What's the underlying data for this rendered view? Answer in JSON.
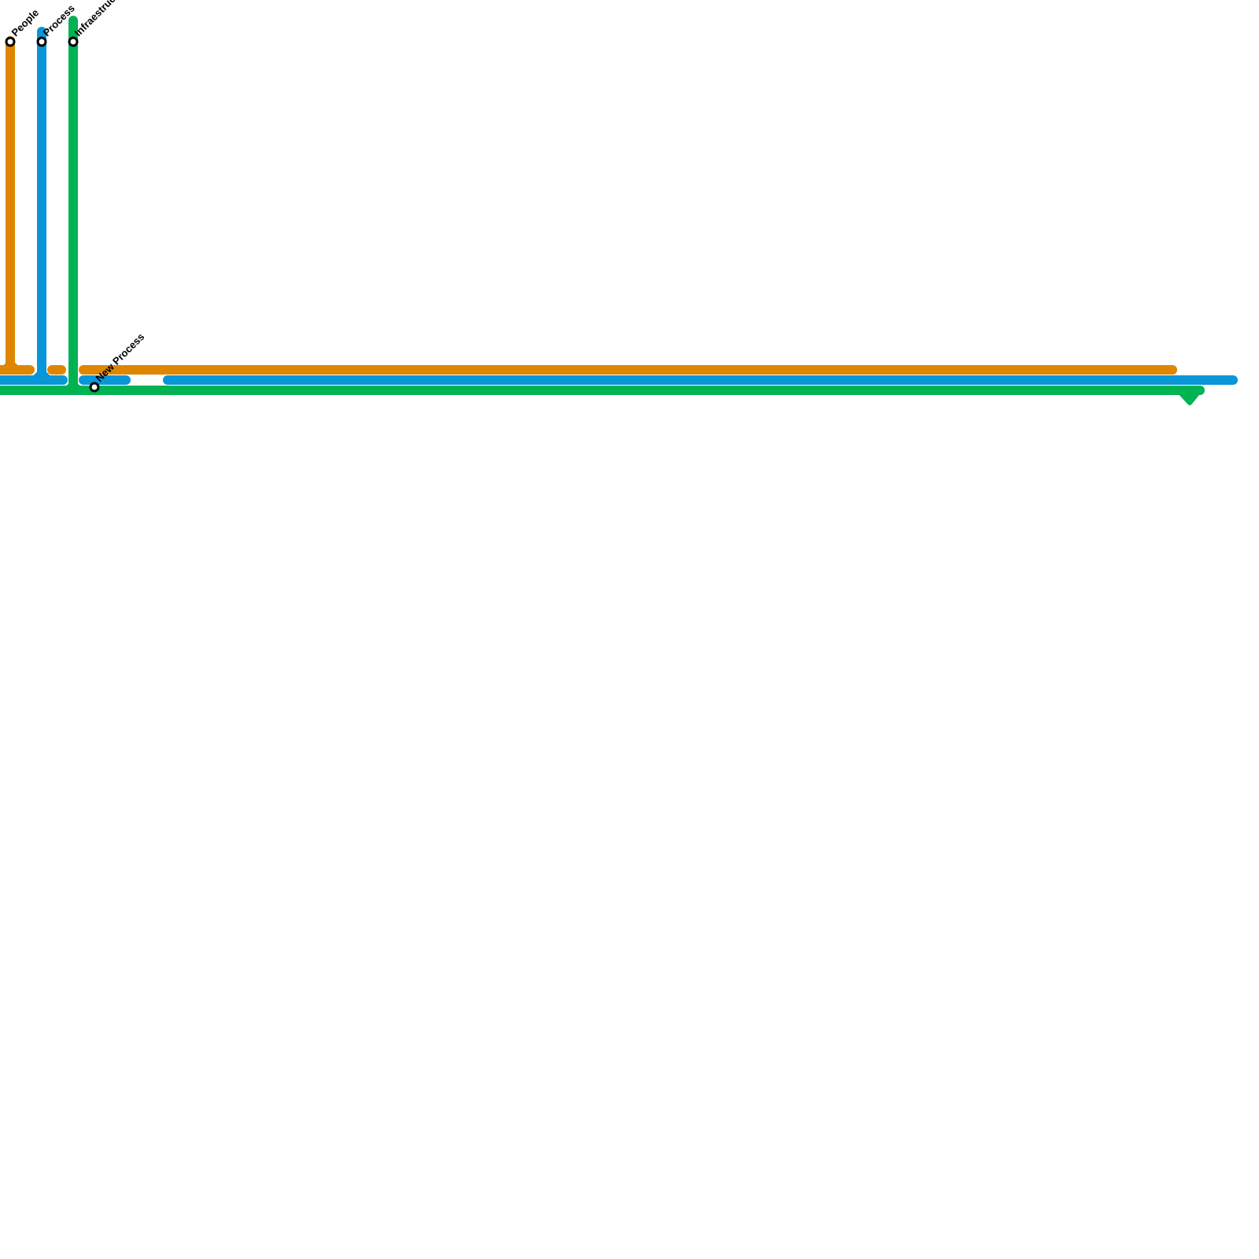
{
  "lines": [
    {
      "name": "People",
      "color": "#DF8600"
    },
    {
      "name": "Process",
      "color": "#0896D7"
    },
    {
      "name": "Infraestructure",
      "color": "#00B251"
    }
  ],
  "stations": [
    {
      "label": "People"
    },
    {
      "label": "Process"
    },
    {
      "label": "Infraestructure"
    },
    {
      "label": "New Process"
    }
  ]
}
